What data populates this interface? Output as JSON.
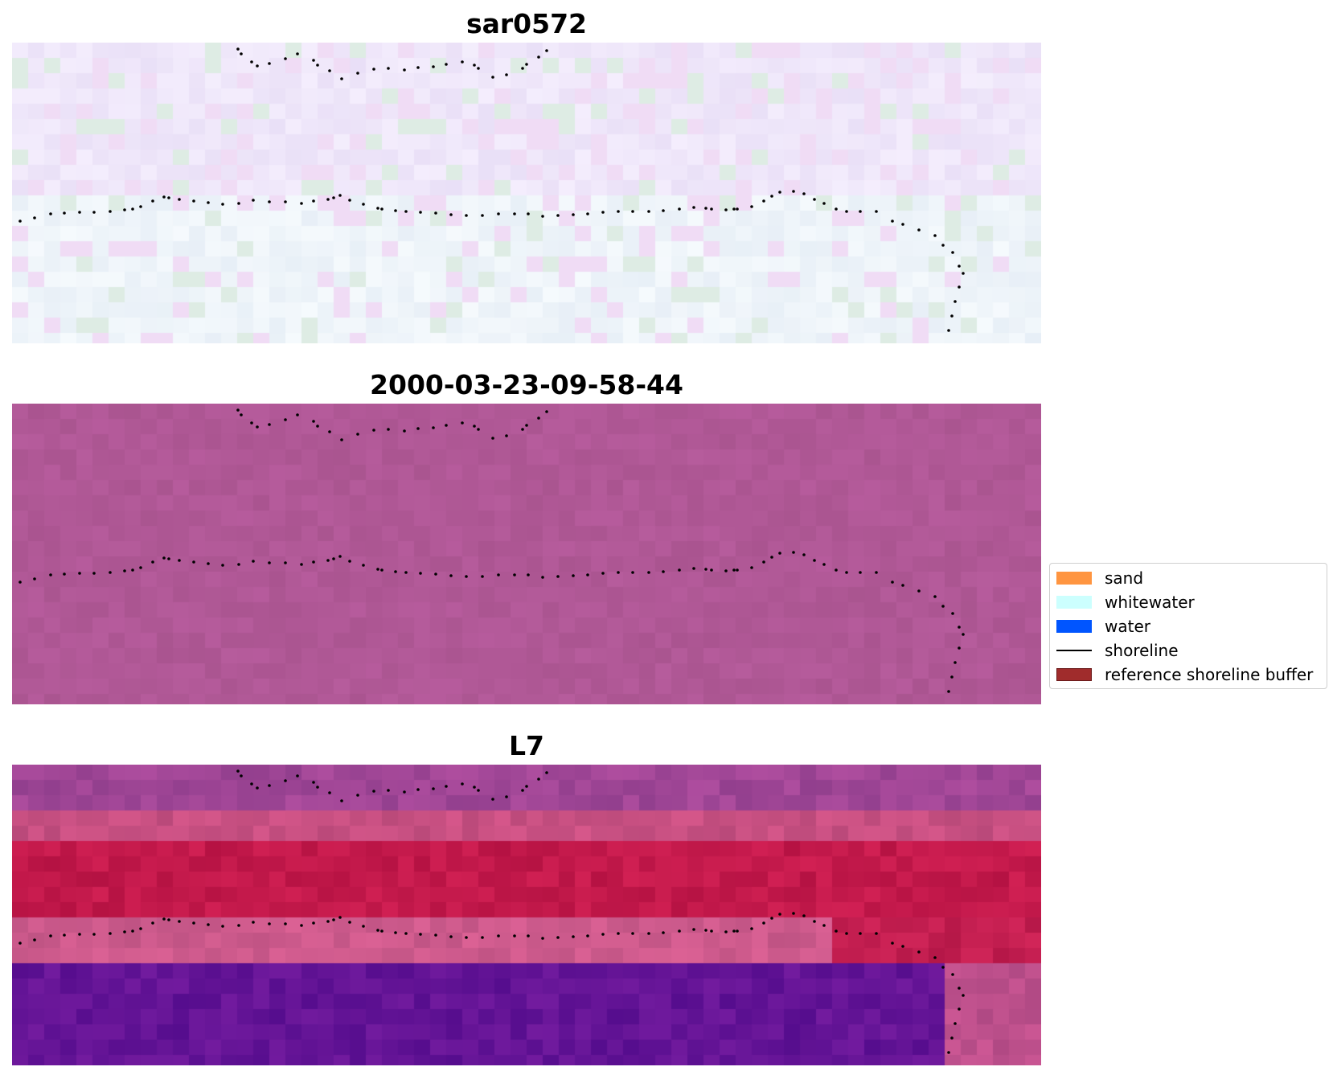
{
  "panels": [
    {
      "title": "sar0572",
      "style": "sar"
    },
    {
      "title": "2000-03-23-09-58-44",
      "style": "flat"
    },
    {
      "title": "L7",
      "style": "l7"
    }
  ],
  "legend": {
    "items": [
      {
        "label": "sand",
        "kind": "patch",
        "color": "#ff9540",
        "edge": "#ff9540"
      },
      {
        "label": "whitewater",
        "kind": "patch",
        "color": "#ccfffe",
        "edge": "#ccfffe"
      },
      {
        "label": "water",
        "kind": "patch",
        "color": "#0055ff",
        "edge": "#0055ff"
      },
      {
        "label": "shoreline",
        "kind": "line",
        "color": "#000000"
      },
      {
        "label": "reference shoreline buffer",
        "kind": "patch",
        "color": "#a02c2c",
        "edge": "#6b1a1a"
      }
    ]
  }
}
